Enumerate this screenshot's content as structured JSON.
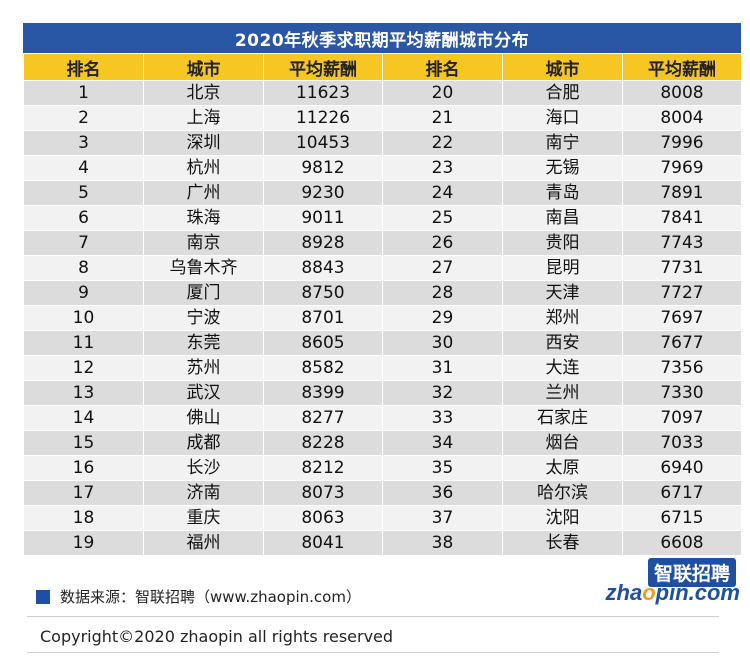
{
  "title": "2020年秋季求职期平均薪酬城市分布",
  "headers": [
    "排名",
    "城市",
    "平均薪酬",
    "排名",
    "城市",
    "平均薪酬"
  ],
  "rows": [
    [
      "1",
      "北京",
      "11623",
      "20",
      "合肥",
      "8008"
    ],
    [
      "2",
      "上海",
      "11226",
      "21",
      "海口",
      "8004"
    ],
    [
      "3",
      "深圳",
      "10453",
      "22",
      "南宁",
      "7996"
    ],
    [
      "4",
      "杭州",
      "9812",
      "23",
      "无锡",
      "7969"
    ],
    [
      "5",
      "广州",
      "9230",
      "24",
      "青岛",
      "7891"
    ],
    [
      "6",
      "珠海",
      "9011",
      "25",
      "南昌",
      "7841"
    ],
    [
      "7",
      "南京",
      "8928",
      "26",
      "贵阳",
      "7743"
    ],
    [
      "8",
      "乌鲁木齐",
      "8843",
      "27",
      "昆明",
      "7731"
    ],
    [
      "9",
      "厦门",
      "8750",
      "28",
      "天津",
      "7727"
    ],
    [
      "10",
      "宁波",
      "8701",
      "29",
      "郑州",
      "7697"
    ],
    [
      "11",
      "东莞",
      "8605",
      "30",
      "西安",
      "7677"
    ],
    [
      "12",
      "苏州",
      "8582",
      "31",
      "大连",
      "7356"
    ],
    [
      "13",
      "武汉",
      "8399",
      "32",
      "兰州",
      "7330"
    ],
    [
      "14",
      "佛山",
      "8277",
      "33",
      "石家庄",
      "7097"
    ],
    [
      "15",
      "成都",
      "8228",
      "34",
      "烟台",
      "7033"
    ],
    [
      "16",
      "长沙",
      "8212",
      "35",
      "太原",
      "6940"
    ],
    [
      "17",
      "济南",
      "8073",
      "36",
      "哈尔滨",
      "6717"
    ],
    [
      "18",
      "重庆",
      "8063",
      "37",
      "沈阳",
      "6715"
    ],
    [
      "19",
      "福州",
      "8041",
      "38",
      "长春",
      "6608"
    ]
  ],
  "footer": {
    "source": "数据来源：智联招聘（www.zhaopin.com）",
    "copyright": "Copyright©2020 zhaopin all rights reserved"
  },
  "logo": {
    "cn": "智联招聘",
    "en_prefix": "zha",
    "en_o": "o",
    "en_suffix": "pin.com"
  },
  "colors": {
    "title_bg": "#2a56a6",
    "header_bg": "#f6c623",
    "row_dark": "#dcdcdc",
    "row_light": "#f2f2f2",
    "brand_blue": "#1f4fa0",
    "brand_orange": "#f29a1e"
  }
}
